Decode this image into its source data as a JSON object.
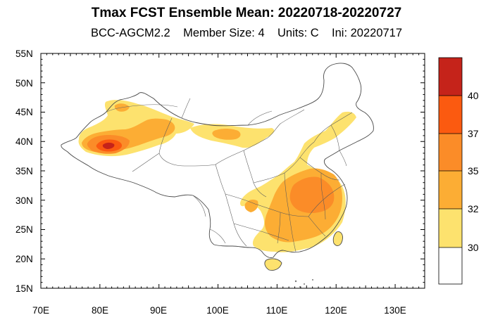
{
  "title": "Tmax FCST Ensemble Mean: 20220718-20220727",
  "subtitle": {
    "model": "BCC-AGCM2.2",
    "member": "Member Size: 4",
    "units": "Units: C",
    "ini": "Ini: 20220717"
  },
  "map": {
    "lon_range": [
      70,
      135
    ],
    "lat_range": [
      15,
      55
    ],
    "lon_ticks": [
      "70E",
      "80E",
      "90E",
      "100E",
      "110E",
      "120E",
      "130E"
    ],
    "lat_ticks": [
      "55N",
      "50N",
      "45N",
      "40N",
      "35N",
      "30N",
      "25N",
      "20N",
      "15N"
    ],
    "variable": "Tmax ensemble mean"
  },
  "colorbar": {
    "levels": [
      "30",
      "32",
      "35",
      "37",
      "40"
    ],
    "colors": [
      "#ffffff",
      "#fde26e",
      "#fcad34",
      "#fb8c28",
      "#fb5a10",
      "#c5231a"
    ]
  }
}
